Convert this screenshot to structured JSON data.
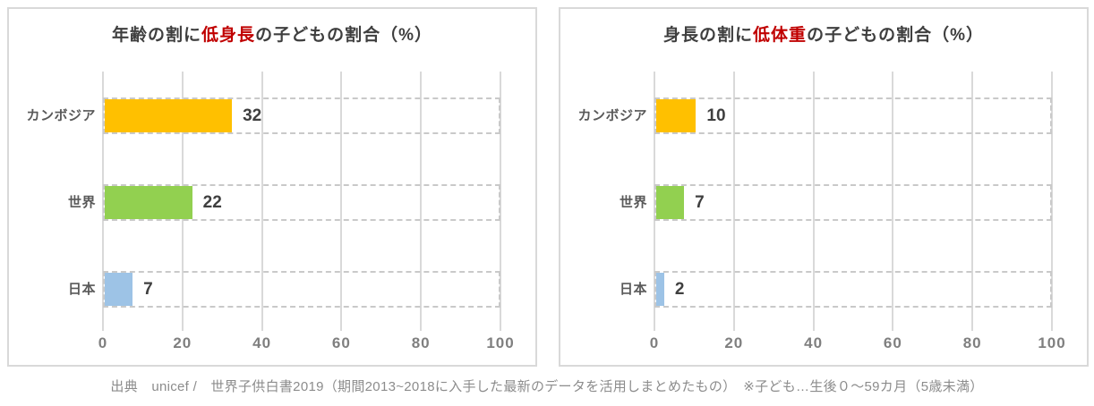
{
  "source_note": "出典　unicef /　世界子供白書2019（期間2013~2018に入手した最新のデータを活用しまとめたもの）　※子ども…生後０～59カ月（5歳未満）",
  "colors": {
    "title_text": "#3F3F3F",
    "title_highlight": "#C00000",
    "bar_cambodia": "#FFC000",
    "bar_world": "#92D050",
    "bar_japan": "#9DC3E6",
    "gridline": "#D9D9D9",
    "track_outline": "#C9C9C9",
    "panel_border": "#D9D9D9",
    "axis_text": "#7F7F7F",
    "source_text": "#8C8C8C"
  },
  "chart_data": [
    {
      "type": "bar",
      "orientation": "horizontal",
      "title": "年齢の割に低身長の子どもの割合（%）",
      "title_parts": {
        "prefix": "年齢の割に",
        "highlight": "低身長",
        "suffix": "の子どもの割合（%）"
      },
      "categories": [
        "カンボジア",
        "世界",
        "日本"
      ],
      "values": [
        32,
        22,
        7
      ],
      "value_labels": [
        "32",
        "22",
        "7"
      ],
      "bar_colors": [
        "#FFC000",
        "#92D050",
        "#9DC3E6"
      ],
      "xlim": [
        0,
        100
      ],
      "xticks": [
        0,
        20,
        40,
        60,
        80,
        100
      ],
      "grid": true,
      "legend": "none",
      "track_outline_style": "dashed-full-width"
    },
    {
      "type": "bar",
      "orientation": "horizontal",
      "title": "身長の割に低体重の子どもの割合（%）",
      "title_parts": {
        "prefix": "身長の割に",
        "highlight": "低体重",
        "suffix": "の子どもの割合（%）"
      },
      "categories": [
        "カンボジア",
        "世界",
        "日本"
      ],
      "values": [
        10,
        7,
        2
      ],
      "value_labels": [
        "10",
        "7",
        "2"
      ],
      "bar_colors": [
        "#FFC000",
        "#92D050",
        "#9DC3E6"
      ],
      "xlim": [
        0,
        100
      ],
      "xticks": [
        0,
        20,
        40,
        60,
        80,
        100
      ],
      "grid": true,
      "legend": "none",
      "track_outline_style": "dashed-full-width"
    }
  ]
}
